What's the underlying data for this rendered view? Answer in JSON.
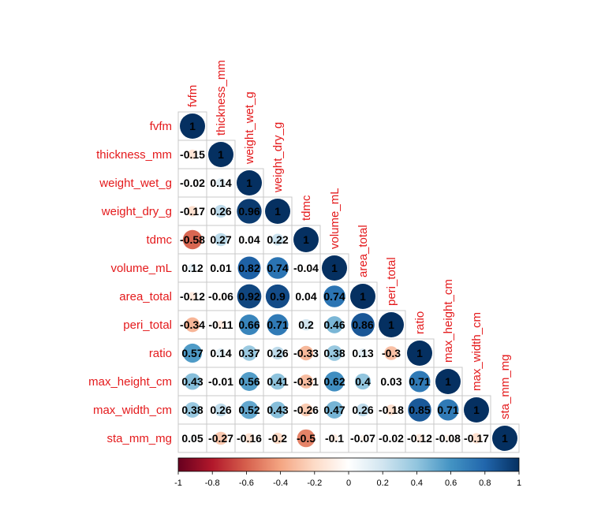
{
  "chart_data": {
    "type": "heatmap",
    "subtype": "correlation-matrix-lower-circles",
    "variables": [
      "fvfm",
      "thickness_mm",
      "weight_wet_g",
      "weight_dry_g",
      "tdmc",
      "volume_mL",
      "area_total",
      "peri_total",
      "ratio",
      "max_height_cm",
      "max_width_cm",
      "sta_mm_mg"
    ],
    "labels": {
      "fvfm": "fvfm",
      "thickness_mm": "thickness_mm",
      "weight_wet_g": "weight_wet_g",
      "weight_dry_g": "weight_dry_g",
      "tdmc": "tdmc",
      "volume_mL": "volume_mL",
      "area_total": "area_total",
      "peri_total": "peri_total",
      "ratio": "ratio",
      "max_height_cm": "max_height_cm",
      "max_width_cm": "max_width_cm",
      "sta_mm_mg": "sta_mm_mg"
    },
    "matrix": [
      [
        "1"
      ],
      [
        "-0.15",
        "1"
      ],
      [
        "-0.02",
        "0.14",
        "1"
      ],
      [
        "-0.17",
        "0.26",
        "0.96",
        "1"
      ],
      [
        "-0.58",
        "0.27",
        "0.04",
        "0.22",
        "1"
      ],
      [
        "0.12",
        "0.01",
        "0.82",
        "0.74",
        "-0.04",
        "1"
      ],
      [
        "-0.12",
        "-0.06",
        "0.92",
        "0.9",
        "0.04",
        "0.74",
        "1"
      ],
      [
        "-0.34",
        "-0.11",
        "0.66",
        "0.71",
        "0.2",
        "0.46",
        "0.86",
        "1"
      ],
      [
        "0.57",
        "0.14",
        "0.37",
        "0.26",
        "-0.33",
        "0.38",
        "0.13",
        "-0.3",
        "1"
      ],
      [
        "0.43",
        "-0.01",
        "0.56",
        "0.41",
        "-0.31",
        "0.62",
        "0.4",
        "0.03",
        "0.71",
        "1"
      ],
      [
        "0.38",
        "0.26",
        "0.52",
        "0.43",
        "-0.26",
        "0.47",
        "0.26",
        "-0.18",
        "0.85",
        "0.71",
        "1"
      ],
      [
        "0.05",
        "-0.27",
        "-0.16",
        "-0.2",
        "-0.5",
        "-0.1",
        "-0.07",
        "-0.02",
        "-0.12",
        "-0.08",
        "-0.17",
        "1"
      ]
    ],
    "colorbar": {
      "min": -1,
      "max": 1,
      "ticks": [
        "-1",
        "-0.8",
        "-0.6",
        "-0.4",
        "-0.2",
        "0",
        "0.2",
        "0.4",
        "0.6",
        "0.8",
        "1"
      ]
    },
    "colors": {
      "label": "#e41a1c",
      "value_text": "#000000",
      "cell_border": "#c8c8c8",
      "scale": [
        "#67001f",
        "#b2182b",
        "#d6604d",
        "#f4a582",
        "#fddbc7",
        "#ffffff",
        "#d1e5f0",
        "#92c5de",
        "#4393c3",
        "#2166ac",
        "#053061"
      ]
    },
    "grid": true,
    "legend": "bottom"
  }
}
